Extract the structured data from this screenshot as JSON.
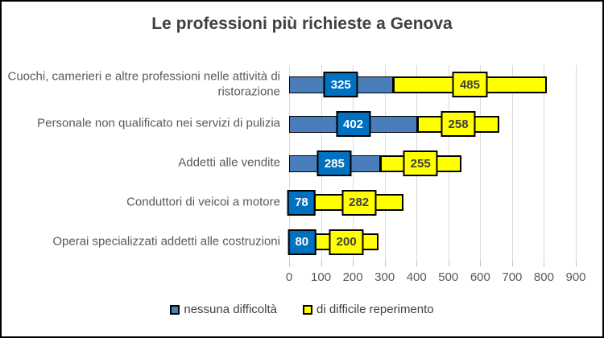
{
  "title": "Le professioni più richieste a Genova",
  "colors": {
    "blue_bar": "#4A7EBB",
    "blue_label_box": "#0070C0",
    "yellow": "#FFFF00",
    "gridline": "#D9D9D9",
    "title_text": "#404040",
    "axis_text": "#595959",
    "frame_border": "#000000"
  },
  "legend": {
    "items": [
      {
        "label": "nessuna difficoltà",
        "color": "#4A7EBB"
      },
      {
        "label": "di difficile reperimento",
        "color": "#FFFF00"
      }
    ]
  },
  "chart_data": {
    "type": "bar",
    "orientation": "horizontal",
    "stacked": true,
    "title": "Le professioni più richieste a Genova",
    "categories": [
      "Cuochi, camerieri e altre professioni nelle attività di ristorazione",
      "Personale non qualificato nei servizi di pulizia",
      "Addetti alle vendite",
      "Conduttori di veicoi a motore",
      "Operai specializzati addetti alle costruzioni"
    ],
    "series": [
      {
        "name": "nessuna difficoltà",
        "values": [
          325,
          402,
          285,
          78,
          80
        ]
      },
      {
        "name": "di difficile reperimento",
        "values": [
          485,
          258,
          255,
          282,
          200
        ]
      }
    ],
    "xlim": [
      0,
      900
    ],
    "xticks": [
      0,
      100,
      200,
      300,
      400,
      500,
      600,
      700,
      800,
      900
    ],
    "grid": true,
    "legend_position": "bottom",
    "data_labels": true
  }
}
